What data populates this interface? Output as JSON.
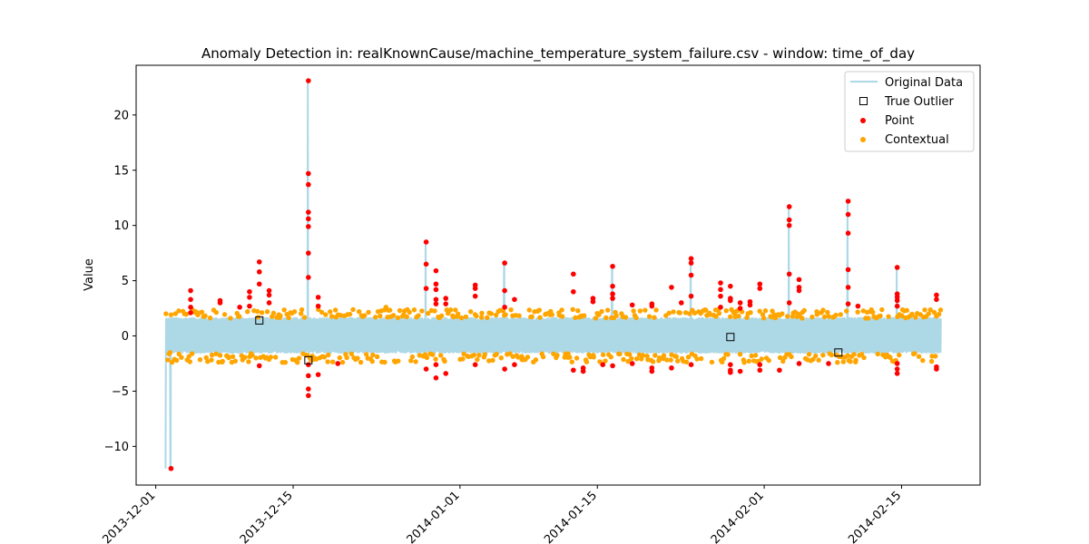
{
  "chart_data": {
    "type": "scatter",
    "title": "Anomaly Detection in: realKnownCause/machine_temperature_system_failure.csv - window: time_of_day",
    "xlabel": "",
    "ylabel": "Value",
    "xlim": [
      "2013-11-29",
      "2014-02-23"
    ],
    "ylim": [
      -13.5,
      24.5
    ],
    "x_ticks": [
      {
        "date": "2013-12-01",
        "label": "2013-12-01"
      },
      {
        "date": "2013-12-15",
        "label": "2013-12-15"
      },
      {
        "date": "2014-01-01",
        "label": "2014-01-01"
      },
      {
        "date": "2014-01-15",
        "label": "2014-01-15"
      },
      {
        "date": "2014-02-01",
        "label": "2014-02-01"
      },
      {
        "date": "2014-02-15",
        "label": "2014-02-15"
      }
    ],
    "y_ticks": [
      -10,
      -5,
      0,
      5,
      10,
      15,
      20
    ],
    "grid": false,
    "legend_position": "top-right",
    "colors": {
      "original": "#add8e6",
      "point": "#ff0000",
      "contextual": "#ffa500",
      "true_outlier_edge": "#000000"
    },
    "series": [
      {
        "name": "Original Data",
        "kind": "line",
        "x_range": [
          "2013-12-02",
          "2014-02-19"
        ],
        "band": [
          -1.6,
          1.7
        ],
        "spikes": [
          {
            "x": "2013-12-02",
            "y": -12.0
          },
          {
            "x": "2013-12-16",
            "y": 23.1
          },
          {
            "x": "2013-12-28",
            "y": 8.5
          },
          {
            "x": "2014-01-05",
            "y": 6.6
          },
          {
            "x": "2014-01-16",
            "y": 6.3
          },
          {
            "x": "2014-01-24",
            "y": 7.0
          },
          {
            "x": "2014-02-03",
            "y": 11.7
          },
          {
            "x": "2014-02-09",
            "y": 12.2
          },
          {
            "x": "2014-02-14",
            "y": 6.2
          }
        ]
      },
      {
        "name": "True Outlier",
        "kind": "square",
        "points": [
          {
            "x": "2013-12-11",
            "y": 1.4
          },
          {
            "x": "2013-12-16",
            "y": -2.2
          },
          {
            "x": "2014-01-28",
            "y": -0.1
          },
          {
            "x": "2014-02-08",
            "y": -1.5
          }
        ]
      },
      {
        "name": "Point",
        "kind": "dot",
        "points": [
          {
            "x": "2013-12-02",
            "y": -12.0
          },
          {
            "x": "2013-12-04",
            "y": 4.1
          },
          {
            "x": "2013-12-04",
            "y": 3.3
          },
          {
            "x": "2013-12-04",
            "y": 2.6
          },
          {
            "x": "2013-12-04",
            "y": 2.1
          },
          {
            "x": "2013-12-07",
            "y": 3.2
          },
          {
            "x": "2013-12-07",
            "y": 3.0
          },
          {
            "x": "2013-12-09",
            "y": 2.6
          },
          {
            "x": "2013-12-10",
            "y": 4.0
          },
          {
            "x": "2013-12-10",
            "y": 3.5
          },
          {
            "x": "2013-12-10",
            "y": 2.7
          },
          {
            "x": "2013-12-11",
            "y": 6.7
          },
          {
            "x": "2013-12-11",
            "y": 5.8
          },
          {
            "x": "2013-12-11",
            "y": 4.7
          },
          {
            "x": "2013-12-11",
            "y": -2.7
          },
          {
            "x": "2013-12-12",
            "y": 4.1
          },
          {
            "x": "2013-12-12",
            "y": 3.7
          },
          {
            "x": "2013-12-12",
            "y": 3.0
          },
          {
            "x": "2013-12-16",
            "y": 23.1
          },
          {
            "x": "2013-12-16",
            "y": 14.7
          },
          {
            "x": "2013-12-16",
            "y": 13.7
          },
          {
            "x": "2013-12-16",
            "y": 11.2
          },
          {
            "x": "2013-12-16",
            "y": 10.6
          },
          {
            "x": "2013-12-16",
            "y": 9.9
          },
          {
            "x": "2013-12-16",
            "y": 7.5
          },
          {
            "x": "2013-12-16",
            "y": 5.3
          },
          {
            "x": "2013-12-16",
            "y": -2.6
          },
          {
            "x": "2013-12-16",
            "y": -3.6
          },
          {
            "x": "2013-12-16",
            "y": -4.8
          },
          {
            "x": "2013-12-16",
            "y": -5.4
          },
          {
            "x": "2013-12-17",
            "y": 3.5
          },
          {
            "x": "2013-12-17",
            "y": 2.7
          },
          {
            "x": "2013-12-17",
            "y": -3.5
          },
          {
            "x": "2013-12-19",
            "y": -2.5
          },
          {
            "x": "2013-12-28",
            "y": 8.5
          },
          {
            "x": "2013-12-28",
            "y": 6.5
          },
          {
            "x": "2013-12-28",
            "y": 4.3
          },
          {
            "x": "2013-12-28",
            "y": -3.0
          },
          {
            "x": "2013-12-29",
            "y": 5.9
          },
          {
            "x": "2013-12-29",
            "y": 4.7
          },
          {
            "x": "2013-12-29",
            "y": 4.2
          },
          {
            "x": "2013-12-29",
            "y": 3.3
          },
          {
            "x": "2013-12-29",
            "y": 2.9
          },
          {
            "x": "2013-12-29",
            "y": -2.6
          },
          {
            "x": "2013-12-29",
            "y": -3.8
          },
          {
            "x": "2013-12-30",
            "y": 3.4
          },
          {
            "x": "2013-12-30",
            "y": 2.9
          },
          {
            "x": "2013-12-30",
            "y": -3.4
          },
          {
            "x": "2014-01-02",
            "y": 4.6
          },
          {
            "x": "2014-01-02",
            "y": 4.3
          },
          {
            "x": "2014-01-02",
            "y": 3.6
          },
          {
            "x": "2014-01-02",
            "y": -2.6
          },
          {
            "x": "2014-01-05",
            "y": 6.6
          },
          {
            "x": "2014-01-05",
            "y": 4.1
          },
          {
            "x": "2014-01-05",
            "y": 2.6
          },
          {
            "x": "2014-01-05",
            "y": -3.0
          },
          {
            "x": "2014-01-06",
            "y": 3.3
          },
          {
            "x": "2014-01-06",
            "y": -2.6
          },
          {
            "x": "2014-01-12",
            "y": 5.6
          },
          {
            "x": "2014-01-12",
            "y": 4.0
          },
          {
            "x": "2014-01-12",
            "y": -3.1
          },
          {
            "x": "2014-01-13",
            "y": -2.9
          },
          {
            "x": "2014-01-13",
            "y": -3.2
          },
          {
            "x": "2014-01-14",
            "y": 3.4
          },
          {
            "x": "2014-01-14",
            "y": 3.1
          },
          {
            "x": "2014-01-15",
            "y": -2.6
          },
          {
            "x": "2014-01-16",
            "y": 6.3
          },
          {
            "x": "2014-01-16",
            "y": 4.5
          },
          {
            "x": "2014-01-16",
            "y": 3.8
          },
          {
            "x": "2014-01-16",
            "y": 3.4
          },
          {
            "x": "2014-01-16",
            "y": -2.7
          },
          {
            "x": "2014-01-18",
            "y": 2.8
          },
          {
            "x": "2014-01-18",
            "y": -2.5
          },
          {
            "x": "2014-01-20",
            "y": 2.9
          },
          {
            "x": "2014-01-20",
            "y": 2.7
          },
          {
            "x": "2014-01-20",
            "y": -2.9
          },
          {
            "x": "2014-01-20",
            "y": -3.2
          },
          {
            "x": "2014-01-22",
            "y": 4.4
          },
          {
            "x": "2014-01-22",
            "y": -2.9
          },
          {
            "x": "2014-01-23",
            "y": 3.0
          },
          {
            "x": "2014-01-24",
            "y": 7.0
          },
          {
            "x": "2014-01-24",
            "y": 6.6
          },
          {
            "x": "2014-01-24",
            "y": 5.5
          },
          {
            "x": "2014-01-24",
            "y": 3.6
          },
          {
            "x": "2014-01-24",
            "y": -2.6
          },
          {
            "x": "2014-01-27",
            "y": 4.8
          },
          {
            "x": "2014-01-27",
            "y": 4.2
          },
          {
            "x": "2014-01-27",
            "y": 3.6
          },
          {
            "x": "2014-01-27",
            "y": 2.6
          },
          {
            "x": "2014-01-28",
            "y": 4.5
          },
          {
            "x": "2014-01-28",
            "y": 3.4
          },
          {
            "x": "2014-01-28",
            "y": 3.2
          },
          {
            "x": "2014-01-28",
            "y": -2.6
          },
          {
            "x": "2014-01-28",
            "y": -3.3
          },
          {
            "x": "2014-01-28",
            "y": -3.1
          },
          {
            "x": "2014-01-29",
            "y": 3.0
          },
          {
            "x": "2014-01-29",
            "y": 2.5
          },
          {
            "x": "2014-01-29",
            "y": -3.2
          },
          {
            "x": "2014-01-30",
            "y": 3.1
          },
          {
            "x": "2014-01-30",
            "y": 2.8
          },
          {
            "x": "2014-01-31",
            "y": 4.7
          },
          {
            "x": "2014-01-31",
            "y": 4.3
          },
          {
            "x": "2014-01-31",
            "y": -3.1
          },
          {
            "x": "2014-01-31",
            "y": -2.6
          },
          {
            "x": "2014-02-02",
            "y": -3.1
          },
          {
            "x": "2014-02-03",
            "y": 11.7
          },
          {
            "x": "2014-02-03",
            "y": 10.5
          },
          {
            "x": "2014-02-03",
            "y": 10.0
          },
          {
            "x": "2014-02-03",
            "y": 5.6
          },
          {
            "x": "2014-02-03",
            "y": 3.0
          },
          {
            "x": "2014-02-04",
            "y": 5.1
          },
          {
            "x": "2014-02-04",
            "y": 4.4
          },
          {
            "x": "2014-02-04",
            "y": 4.1
          },
          {
            "x": "2014-02-04",
            "y": -2.5
          },
          {
            "x": "2014-02-07",
            "y": -2.5
          },
          {
            "x": "2014-02-09",
            "y": 12.2
          },
          {
            "x": "2014-02-09",
            "y": 11.0
          },
          {
            "x": "2014-02-09",
            "y": 9.3
          },
          {
            "x": "2014-02-09",
            "y": 6.0
          },
          {
            "x": "2014-02-09",
            "y": 4.4
          },
          {
            "x": "2014-02-09",
            "y": 2.9
          },
          {
            "x": "2014-02-10",
            "y": 2.7
          },
          {
            "x": "2014-02-14",
            "y": 6.2
          },
          {
            "x": "2014-02-14",
            "y": 3.8
          },
          {
            "x": "2014-02-14",
            "y": 3.5
          },
          {
            "x": "2014-02-14",
            "y": 3.2
          },
          {
            "x": "2014-02-14",
            "y": 2.7
          },
          {
            "x": "2014-02-14",
            "y": -2.5
          },
          {
            "x": "2014-02-14",
            "y": -3.0
          },
          {
            "x": "2014-02-14",
            "y": -3.4
          },
          {
            "x": "2014-02-18",
            "y": 3.7
          },
          {
            "x": "2014-02-18",
            "y": 3.3
          },
          {
            "x": "2014-02-18",
            "y": -2.8
          },
          {
            "x": "2014-02-18",
            "y": -3.0
          }
        ]
      },
      {
        "name": "Contextual",
        "kind": "dot",
        "x_range": [
          "2013-12-02",
          "2014-02-19"
        ],
        "upper_band": [
          1.6,
          2.4
        ],
        "lower_band": [
          -2.4,
          -1.6
        ],
        "extra_points": [
          {
            "x": "2013-12-02",
            "y": -1.5
          },
          {
            "x": "2013-12-24",
            "y": 2.6
          },
          {
            "x": "2014-02-08",
            "y": -2.4
          }
        ]
      }
    ]
  }
}
